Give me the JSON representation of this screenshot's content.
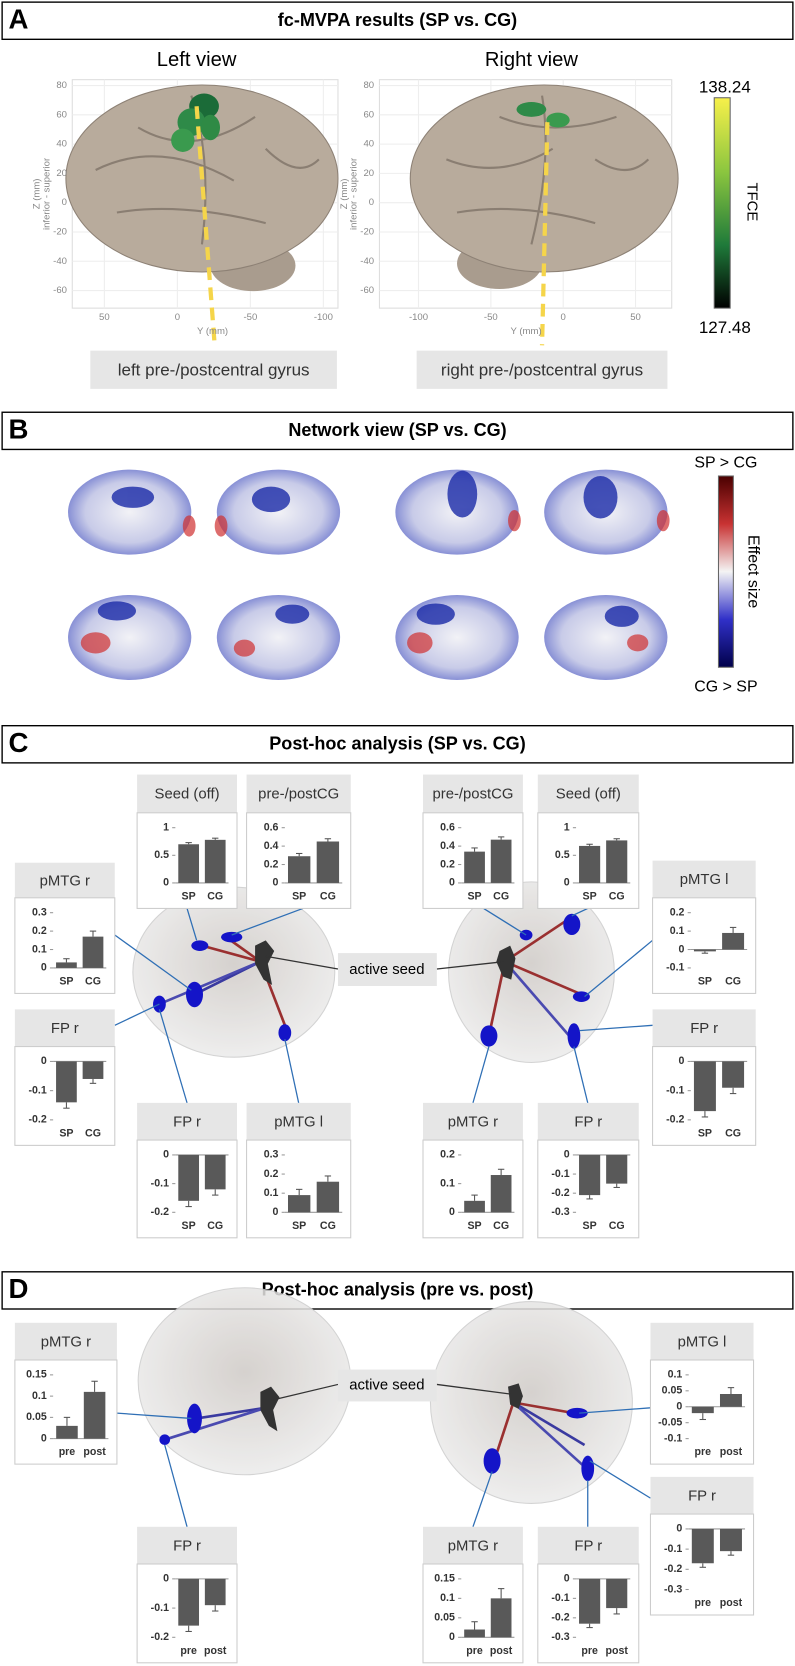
{
  "panels": {
    "A": {
      "letter": "A",
      "title": "fc-MVPA results (SP vs. CG)",
      "views": [
        {
          "title": "Left view",
          "x_label": "Y (mm)",
          "y_label": "Z (mm)",
          "y_label_2": "inferior - superior",
          "xlim": [
            72,
            -110
          ],
          "xticks": [
            50,
            0,
            -50,
            -100
          ],
          "ylim": [
            -72,
            84
          ],
          "yticks": [
            80,
            60,
            40,
            20,
            0,
            -20,
            -40,
            -60
          ],
          "region": "left pre-/postcentral gyrus"
        },
        {
          "title": "Right view",
          "x_label": "Y (mm)",
          "y_label": "Z (mm)",
          "y_label_2": "inferior - superior",
          "xlim": [
            -127,
            75
          ],
          "xticks": [
            -100,
            -50,
            0,
            50
          ],
          "ylim": [
            -72,
            84
          ],
          "yticks": [
            80,
            60,
            40,
            20,
            0,
            -20,
            -40,
            -60
          ],
          "region": "right pre-/postcentral gyrus"
        }
      ],
      "colorbar": {
        "max": 138.24,
        "min": 127.48,
        "label": "TFCE"
      }
    },
    "B": {
      "letter": "B",
      "title": "Network view (SP vs. CG)",
      "colorbar": {
        "top": "SP > CG",
        "label": "Effect size",
        "bottom": "CG > SP"
      }
    },
    "C": {
      "letter": "C",
      "title": "Post-hoc analysis (SP vs. CG)",
      "seed_label": "active seed",
      "charts": [
        {
          "title": "Seed (off)",
          "categories": [
            "SP",
            "CG"
          ],
          "values": [
            0.7,
            0.78
          ],
          "errors": [
            0.03,
            0.03
          ],
          "ylim": [
            0,
            1
          ],
          "yticks": [
            0,
            0.5,
            1
          ]
        },
        {
          "title": "pre-/postCG",
          "categories": [
            "SP",
            "CG"
          ],
          "values": [
            0.29,
            0.45
          ],
          "errors": [
            0.03,
            0.03
          ],
          "ylim": [
            0,
            0.6
          ],
          "yticks": [
            0,
            0.2,
            0.4,
            0.6
          ]
        },
        {
          "title": "pre-/postCG",
          "categories": [
            "SP",
            "CG"
          ],
          "values": [
            0.34,
            0.47
          ],
          "errors": [
            0.04,
            0.03
          ],
          "ylim": [
            0,
            0.6
          ],
          "yticks": [
            0,
            0.2,
            0.4,
            0.6
          ]
        },
        {
          "title": "Seed (off)",
          "categories": [
            "SP",
            "CG"
          ],
          "values": [
            0.67,
            0.77
          ],
          "errors": [
            0.03,
            0.03
          ],
          "ylim": [
            0,
            1
          ],
          "yticks": [
            0,
            0.5,
            1
          ]
        },
        {
          "title": "pMTG r",
          "categories": [
            "SP",
            "CG"
          ],
          "values": [
            0.03,
            0.17
          ],
          "errors": [
            0.02,
            0.03
          ],
          "ylim": [
            0,
            0.3
          ],
          "yticks": [
            0,
            0.1,
            0.2,
            0.3
          ]
        },
        {
          "title": "pMTG l",
          "categories": [
            "SP",
            "CG"
          ],
          "values": [
            -0.01,
            0.09
          ],
          "errors": [
            0.01,
            0.03
          ],
          "ylim": [
            -0.1,
            0.2
          ],
          "yticks": [
            -0.1,
            0,
            0.1,
            0.2
          ]
        },
        {
          "title": "FP r",
          "categories": [
            "SP",
            "CG"
          ],
          "values": [
            -0.14,
            -0.06
          ],
          "errors": [
            0.02,
            0.015
          ],
          "ylim": [
            -0.2,
            0
          ],
          "yticks": [
            -0.2,
            -0.1,
            0
          ]
        },
        {
          "title": "FP r",
          "categories": [
            "SP",
            "CG"
          ],
          "values": [
            -0.16,
            -0.12
          ],
          "errors": [
            0.02,
            0.02
          ],
          "ylim": [
            -0.2,
            0
          ],
          "yticks": [
            -0.2,
            -0.1,
            0
          ]
        },
        {
          "title": "pMTG l",
          "categories": [
            "SP",
            "CG"
          ],
          "values": [
            0.09,
            0.16
          ],
          "errors": [
            0.03,
            0.03
          ],
          "ylim": [
            0,
            0.3
          ],
          "yticks": [
            0,
            0.1,
            0.2,
            0.3
          ]
        },
        {
          "title": "pMTG r",
          "categories": [
            "SP",
            "CG"
          ],
          "values": [
            0.04,
            0.13
          ],
          "errors": [
            0.02,
            0.02
          ],
          "ylim": [
            0,
            0.2
          ],
          "yticks": [
            0,
            0.1,
            0.2
          ]
        },
        {
          "title": "FP r",
          "categories": [
            "SP",
            "CG"
          ],
          "values": [
            -0.21,
            -0.15
          ],
          "errors": [
            0.02,
            0.02
          ],
          "ylim": [
            -0.3,
            0
          ],
          "yticks": [
            -0.3,
            -0.2,
            -0.1,
            0
          ]
        },
        {
          "title": "FP r",
          "categories": [
            "SP",
            "CG"
          ],
          "values": [
            -0.17,
            -0.09
          ],
          "errors": [
            0.02,
            0.02
          ],
          "ylim": [
            -0.2,
            0
          ],
          "yticks": [
            -0.2,
            -0.1,
            0
          ]
        }
      ]
    },
    "D": {
      "letter": "D",
      "title": "Post-hoc analysis  (pre vs. post)",
      "seed_label": "active seed",
      "charts": [
        {
          "title": "pMTG r",
          "categories": [
            "pre",
            "post"
          ],
          "values": [
            0.03,
            0.11
          ],
          "errors": [
            0.02,
            0.025
          ],
          "ylim": [
            0,
            0.15
          ],
          "yticks": [
            0,
            0.05,
            0.1,
            0.15
          ]
        },
        {
          "title": "FP r",
          "categories": [
            "pre",
            "post"
          ],
          "values": [
            -0.16,
            -0.09
          ],
          "errors": [
            0.02,
            0.02
          ],
          "ylim": [
            -0.2,
            0
          ],
          "yticks": [
            -0.2,
            -0.1,
            0
          ]
        },
        {
          "title": "pMTG l",
          "categories": [
            "pre",
            "post"
          ],
          "values": [
            -0.02,
            0.04
          ],
          "errors": [
            0.02,
            0.02
          ],
          "ylim": [
            -0.1,
            0.1
          ],
          "yticks": [
            -0.1,
            -0.05,
            0,
            0.05,
            0.1
          ]
        },
        {
          "title": "FP r",
          "categories": [
            "pre",
            "post"
          ],
          "values": [
            -0.17,
            -0.11
          ],
          "errors": [
            0.02,
            0.02
          ],
          "ylim": [
            -0.3,
            0
          ],
          "yticks": [
            -0.3,
            -0.2,
            -0.1,
            0
          ]
        },
        {
          "title": "pMTG r",
          "categories": [
            "pre",
            "post"
          ],
          "values": [
            0.02,
            0.1
          ],
          "errors": [
            0.02,
            0.025
          ],
          "ylim": [
            0,
            0.15
          ],
          "yticks": [
            0,
            0.05,
            0.1,
            0.15
          ]
        },
        {
          "title": "FP r",
          "categories": [
            "pre",
            "post"
          ],
          "values": [
            -0.23,
            -0.15
          ],
          "errors": [
            0.02,
            0.03
          ],
          "ylim": [
            -0.3,
            0
          ],
          "yticks": [
            -0.3,
            -0.2,
            -0.1,
            0
          ]
        }
      ]
    }
  }
}
